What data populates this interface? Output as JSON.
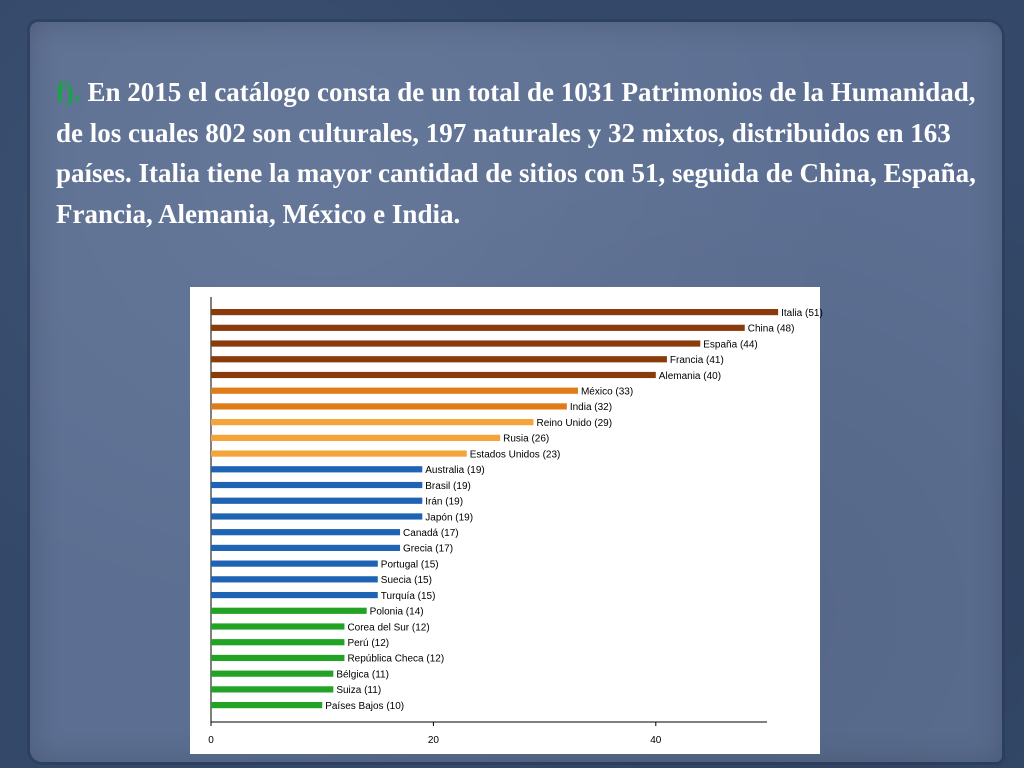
{
  "slide": {
    "marker": "f).",
    "text": " En 2015 el catálogo consta de un total de 1031 Patrimonios de la Humanidad, de los cuales 802 son culturales, 197 naturales y 32 mixtos, distribuidos en 163 países. Italia tiene la mayor cantidad de sitios con 51, seguida de China, España, Francia, Alemania, México e India."
  },
  "chart_data": {
    "type": "bar",
    "orientation": "horizontal",
    "title": "",
    "xlabel": "",
    "ylabel": "",
    "xlim": [
      0,
      50
    ],
    "xticks": [
      0,
      20,
      40
    ],
    "grid": false,
    "legend": "none",
    "categories": [
      "Italia",
      "China",
      "España",
      "Francia",
      "Alemania",
      "México",
      "India",
      "Reino Unido",
      "Rusia",
      "Estados Unidos",
      "Australia",
      "Brasil",
      "Irán",
      "Japón",
      "Canadá",
      "Grecia",
      "Portugal",
      "Suecia",
      "Turquía",
      "Polonia",
      "Corea del Sur",
      "Perú",
      "República Checa",
      "Bélgica",
      "Suiza",
      "Países Bajos"
    ],
    "labels": [
      "Italia (51)",
      "China (48)",
      "España (44)",
      "Francia (41)",
      "Alemania (40)",
      "México (33)",
      "India (32)",
      "Reino Unido (29)",
      "Rusia (26)",
      "Estados Unidos (23)",
      "Australia (19)",
      "Brasil (19)",
      "Irán (19)",
      "Japón (19)",
      "Canadá (17)",
      "Grecia (17)",
      "Portugal (15)",
      "Suecia (15)",
      "Turquía (15)",
      "Polonia (14)",
      "Corea del Sur (12)",
      "Perú (12)",
      "República Checa (12)",
      "Bélgica (11)",
      "Suiza (11)",
      "Países Bajos (10)"
    ],
    "values": [
      51,
      48,
      44,
      41,
      40,
      33,
      32,
      29,
      26,
      23,
      19,
      19,
      19,
      19,
      17,
      17,
      15,
      15,
      15,
      14,
      12,
      12,
      12,
      11,
      11,
      10
    ],
    "colors": [
      "#8a3b0c",
      "#8a3b0c",
      "#8a3b0c",
      "#8a3b0c",
      "#8a3b0c",
      "#e07b1a",
      "#e07b1a",
      "#f5a33b",
      "#f5a33b",
      "#f5a33b",
      "#1f63b4",
      "#1f63b4",
      "#1f63b4",
      "#1f63b4",
      "#1f63b4",
      "#1f63b4",
      "#1f63b4",
      "#1f63b4",
      "#1f63b4",
      "#22a325",
      "#22a325",
      "#22a325",
      "#22a325",
      "#22a325",
      "#22a325",
      "#22a325"
    ]
  }
}
